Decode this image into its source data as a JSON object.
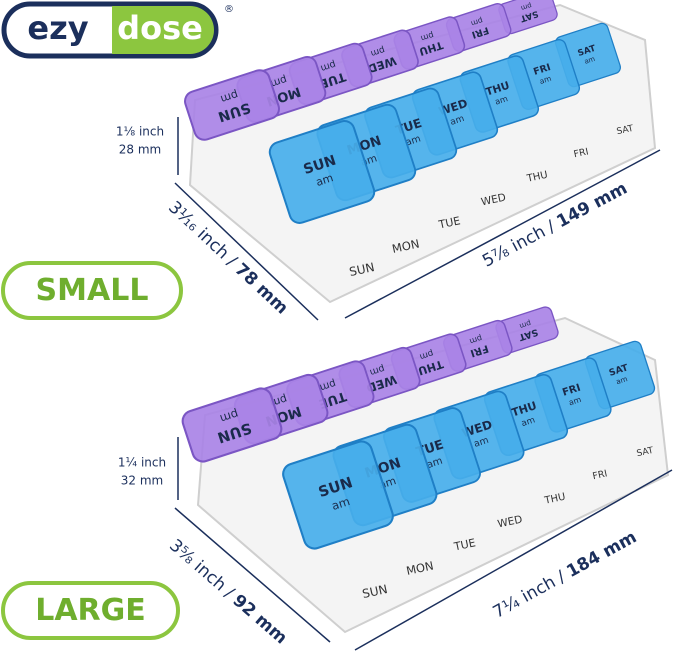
{
  "logo": {
    "left": "ezy",
    "right": "dose",
    "mark": "®"
  },
  "products": [
    {
      "label": "SMALL",
      "days": [
        "SUN",
        "MON",
        "TUE",
        "WED",
        "THU",
        "FRI",
        "SAT"
      ],
      "lid_am": "am",
      "lid_pm": "pm",
      "height": {
        "inch": "1⅛ inch",
        "mm": "28 mm"
      },
      "depth": {
        "inch": "3¹⁄₁₆ inch",
        "separator": "/",
        "mm": "78 mm"
      },
      "width": {
        "inch": "5⁷⁄₈ inch",
        "separator": "/",
        "mm": "149 mm"
      }
    },
    {
      "label": "LARGE",
      "days": [
        "SUN",
        "MON",
        "TUE",
        "WED",
        "THU",
        "FRI",
        "SAT"
      ],
      "lid_am": "am",
      "lid_pm": "pm",
      "height": {
        "inch": "1¼ inch",
        "mm": "32 mm"
      },
      "depth": {
        "inch": "3⁵⁄₈ inch",
        "separator": "/",
        "mm": "92 mm"
      },
      "width": {
        "inch": "7¼ inch",
        "separator": "/",
        "mm": "184 mm"
      }
    }
  ]
}
